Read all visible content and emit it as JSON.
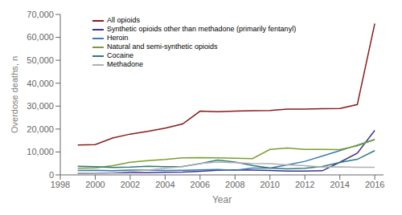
{
  "chart_data": {
    "type": "line",
    "xlabel": "Year",
    "ylabel": "Overdose deaths, n",
    "x": [
      1999,
      2000,
      2001,
      2002,
      2003,
      2004,
      2005,
      2006,
      2007,
      2008,
      2009,
      2010,
      2011,
      2012,
      2013,
      2014,
      2015,
      2016
    ],
    "series": [
      {
        "name": "All opioids",
        "color": "#8B1A1A",
        "values": [
          13000,
          13200,
          16100,
          17800,
          19000,
          20400,
          22200,
          27800,
          27600,
          27800,
          28000,
          28100,
          28700,
          28700,
          28900,
          29000,
          30700,
          66000
        ]
      },
      {
        "name": "Synthetic opioids other than methadone (primarily fentanyl)",
        "color": "#3B3490",
        "values": [
          730,
          780,
          840,
          920,
          1000,
          1100,
          1200,
          1600,
          2000,
          2200,
          2100,
          1900,
          1700,
          1700,
          1800,
          5500,
          9500,
          19400
        ]
      },
      {
        "name": "Heroin",
        "color": "#3A7AB5",
        "values": [
          1960,
          2000,
          1800,
          2100,
          2100,
          1900,
          2000,
          2200,
          2400,
          2000,
          3000,
          3000,
          4400,
          5900,
          8200,
          10600,
          12990,
          15469
        ]
      },
      {
        "name": "Natural and semi-synthetic opioids",
        "color": "#7A9E2E",
        "values": [
          2900,
          3100,
          4000,
          5500,
          6200,
          6700,
          7400,
          7500,
          7400,
          7300,
          7100,
          11100,
          11700,
          11140,
          11100,
          11000,
          12700,
          15400
        ]
      },
      {
        "name": "Cocaine",
        "color": "#2E7A7A",
        "values": [
          3800,
          3600,
          3200,
          3400,
          3800,
          3600,
          3700,
          4900,
          6500,
          5600,
          4100,
          3000,
          2600,
          2900,
          3700,
          5400,
          6800,
          10600
        ]
      },
      {
        "name": "Methadone",
        "color": "#B0B0B0",
        "values": [
          800,
          800,
          1000,
          1500,
          2100,
          2900,
          3600,
          5000,
          5600,
          5300,
          5000,
          4900,
          4400,
          4000,
          3400,
          3500,
          3300,
          3300
        ]
      }
    ],
    "xlim": [
      1998,
      2016.5
    ],
    "xticks": [
      1998,
      2000,
      2002,
      2004,
      2006,
      2008,
      2010,
      2012,
      2014,
      2016
    ],
    "ylim": [
      0,
      70000
    ],
    "yticks": [
      0,
      {
        "value": 10000,
        "label": "10,000"
      },
      {
        "value": 20000,
        "label": "20,000"
      },
      {
        "value": 30000,
        "label": "30,000"
      },
      {
        "value": 40000,
        "label": "40,000"
      },
      {
        "value": 50000,
        "label": "50,000"
      },
      {
        "value": 60000,
        "label": "60,000"
      },
      {
        "value": 70000,
        "label": "70,000"
      }
    ],
    "legend": "upper left",
    "grid": false
  }
}
